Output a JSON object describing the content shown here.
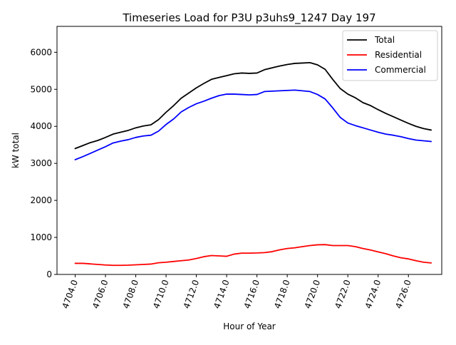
{
  "chart_data": {
    "type": "line",
    "title": "Timeseries Load for P3U p3uhs9_1247  Day 197",
    "xlabel": "Hour of Year",
    "ylabel": "kW total",
    "xlim": [
      4702.8,
      4728.2
    ],
    "ylim": [
      0,
      6700
    ],
    "xticks": [
      4704,
      4706,
      4708,
      4710,
      4712,
      4714,
      4716,
      4718,
      4720,
      4722,
      4724,
      4726
    ],
    "xtick_labels": [
      "4704.0",
      "4706.0",
      "4708.0",
      "4710.0",
      "4712.0",
      "4714.0",
      "4716.0",
      "4718.0",
      "4720.0",
      "4722.0",
      "4724.0",
      "4726.0"
    ],
    "yticks": [
      0,
      1000,
      2000,
      3000,
      4000,
      5000,
      6000
    ],
    "ytick_labels": [
      "0",
      "1000",
      "2000",
      "3000",
      "4000",
      "5000",
      "6000"
    ],
    "grid": false,
    "legend_position": "top-right",
    "x": [
      4704.0,
      4704.5,
      4705.0,
      4705.5,
      4706.0,
      4706.5,
      4707.0,
      4707.5,
      4708.0,
      4708.5,
      4709.0,
      4709.5,
      4710.0,
      4710.5,
      4711.0,
      4711.5,
      4712.0,
      4712.5,
      4713.0,
      4713.5,
      4714.0,
      4714.5,
      4715.0,
      4715.5,
      4716.0,
      4716.5,
      4717.0,
      4717.5,
      4718.0,
      4718.5,
      4719.0,
      4719.5,
      4720.0,
      4720.5,
      4721.0,
      4721.5,
      4722.0,
      4722.5,
      4723.0,
      4723.5,
      4724.0,
      4724.5,
      4725.0,
      4725.5,
      4726.0,
      4726.5,
      4727.0,
      4727.5
    ],
    "series": [
      {
        "name": "Total",
        "color": "#000000",
        "values": [
          3400,
          3480,
          3560,
          3620,
          3700,
          3790,
          3840,
          3890,
          3960,
          4010,
          4040,
          4180,
          4380,
          4560,
          4760,
          4900,
          5040,
          5160,
          5270,
          5320,
          5370,
          5420,
          5440,
          5430,
          5440,
          5530,
          5580,
          5630,
          5670,
          5700,
          5710,
          5720,
          5660,
          5540,
          5270,
          5020,
          4870,
          4770,
          4640,
          4560,
          4450,
          4350,
          4260,
          4170,
          4080,
          4000,
          3940,
          3900
        ]
      },
      {
        "name": "Residential",
        "color": "#ff0000",
        "values": [
          300,
          300,
          285,
          270,
          255,
          245,
          245,
          250,
          260,
          270,
          280,
          315,
          330,
          350,
          370,
          390,
          430,
          480,
          510,
          500,
          490,
          550,
          575,
          575,
          580,
          590,
          615,
          665,
          700,
          720,
          750,
          780,
          800,
          805,
          780,
          780,
          780,
          750,
          700,
          660,
          610,
          560,
          500,
          450,
          420,
          370,
          330,
          310
        ]
      },
      {
        "name": "Commercial",
        "color": "#0000ff",
        "values": [
          3100,
          3180,
          3270,
          3360,
          3450,
          3550,
          3600,
          3640,
          3700,
          3740,
          3760,
          3870,
          4050,
          4200,
          4390,
          4510,
          4610,
          4680,
          4760,
          4830,
          4870,
          4870,
          4860,
          4850,
          4860,
          4940,
          4950,
          4960,
          4970,
          4980,
          4960,
          4940,
          4860,
          4740,
          4500,
          4240,
          4090,
          4020,
          3960,
          3900,
          3840,
          3790,
          3760,
          3720,
          3670,
          3630,
          3610,
          3590
        ]
      }
    ]
  }
}
